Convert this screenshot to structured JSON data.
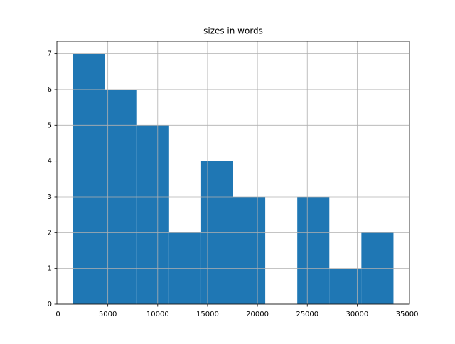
{
  "chart_data": {
    "type": "histogram",
    "title": "sizes in words",
    "bins": [
      1500,
      4714,
      7928,
      11142,
      14356,
      17570,
      20784,
      23998,
      27212,
      30426,
      33640
    ],
    "values": [
      7,
      6,
      5,
      2,
      4,
      3,
      0,
      3,
      1,
      2
    ],
    "color": "#1f77b4",
    "xlim": [
      -107,
      35247
    ],
    "xticks": [
      0,
      5000,
      10000,
      15000,
      20000,
      25000,
      30000,
      35000
    ],
    "ylim": [
      0,
      7.35
    ],
    "yticks": [
      0,
      1,
      2,
      3,
      4,
      5,
      6,
      7
    ],
    "grid": true
  }
}
